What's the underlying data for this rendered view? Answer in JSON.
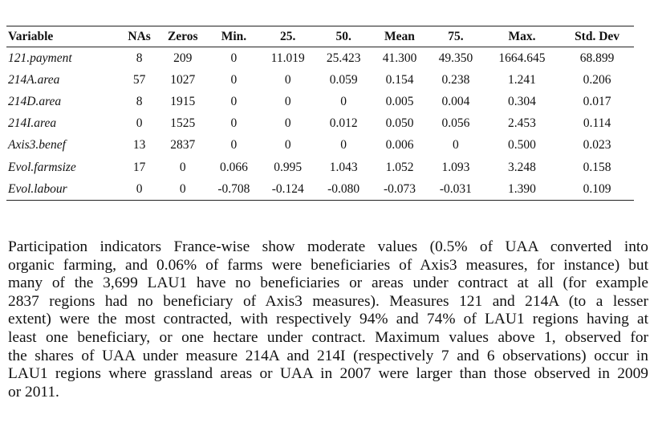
{
  "table": {
    "header": [
      "Variable",
      "NAs",
      "Zeros",
      "Min.",
      "25.",
      "50.",
      "Mean",
      "75.",
      "Max.",
      "Std. Dev"
    ],
    "rows": [
      [
        "121.payment",
        "8",
        "209",
        "0",
        "11.019",
        "25.423",
        "41.300",
        "49.350",
        "1664.645",
        "68.899"
      ],
      [
        "214A.area",
        "57",
        "1027",
        "0",
        "0",
        "0.059",
        "0.154",
        "0.238",
        "1.241",
        "0.206"
      ],
      [
        "214D.area",
        "8",
        "1915",
        "0",
        "0",
        "0",
        "0.005",
        "0.004",
        "0.304",
        "0.017"
      ],
      [
        "214I.area",
        "0",
        "1525",
        "0",
        "0",
        "0.012",
        "0.050",
        "0.056",
        "2.453",
        "0.114"
      ],
      [
        "Axis3.benef",
        "13",
        "2837",
        "0",
        "0",
        "0",
        "0.006",
        "0",
        "0.500",
        "0.023"
      ],
      [
        "Evol.farmsize",
        "17",
        "0",
        "0.066",
        "0.995",
        "1.043",
        "1.052",
        "1.093",
        "3.248",
        "0.158"
      ],
      [
        "Evol.labour",
        "0",
        "0",
        "-0.708",
        "-0.124",
        "-0.080",
        "-0.073",
        "-0.031",
        "1.390",
        "0.109"
      ]
    ]
  },
  "paragraph": {
    "lines": [
      "Participation indicators France-wise show moderate values (0.5% of UAA converted into",
      "organic farming, and 0.06% of farms were beneficiaries of Axis3 measures, for instance) but",
      "many of the 3,699 LAU1 have no beneficiaries or areas under contract at all (for example",
      "2837 regions had no beneficiary of Axis3 measures). Measures 121 and 214A (to a lesser",
      "extent) were the most contracted, with respectively 94% and 74% of LAU1 regions having at",
      "least one beneficiary, or one hectare under contract. Maximum values above 1, observed for",
      "the shares of UAA under measure 214A and 214I (respectively 7 and 6 observations) occur in",
      "LAU1 regions where grassland areas or UAA in 2007 were larger than those observed in 2009",
      "or 2011."
    ]
  }
}
